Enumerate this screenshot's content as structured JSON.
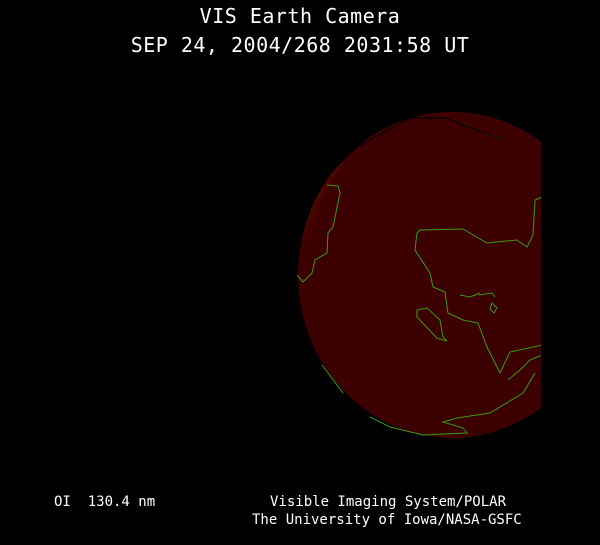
{
  "header": {
    "title": "VIS Earth Camera",
    "timestamp": "SEP 24, 2004/268 2031:58 UT"
  },
  "footer": {
    "wavelength": "OI  130.4 nm",
    "instrument": "Visible Imaging System/POLAR",
    "institution": "The University of Iowa/NASA-GSFC"
  },
  "colors": {
    "background": "#000000",
    "earth_disk": "#3d0000",
    "aurora": "#e07020",
    "coastline": "#3a9a10",
    "text": "#ffffff"
  }
}
